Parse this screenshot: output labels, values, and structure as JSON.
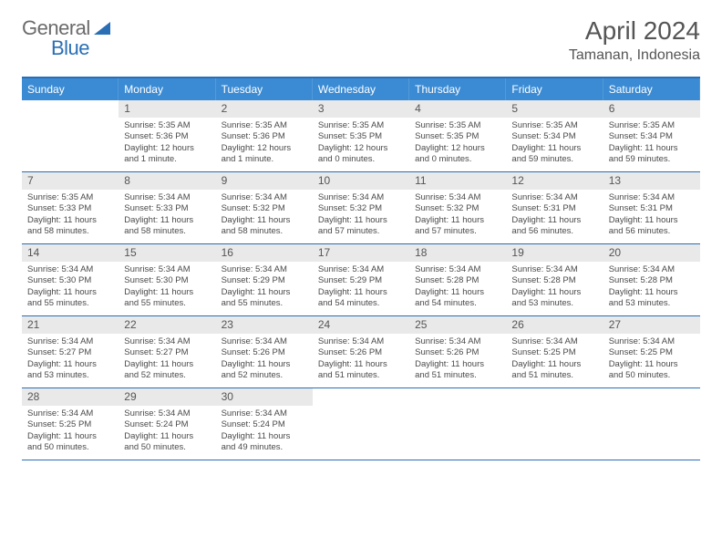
{
  "logo": {
    "word1": "General",
    "word2": "Blue"
  },
  "colors": {
    "brand_blue": "#2a6fb5",
    "header_blue": "#3b8bd4",
    "daynum_bg": "#e9e9e9",
    "text_gray": "#555555",
    "body_text": "#4a4a4a",
    "page_bg": "#ffffff"
  },
  "title": "April 2024",
  "location": "Tamanan, Indonesia",
  "weekdays": [
    "Sunday",
    "Monday",
    "Tuesday",
    "Wednesday",
    "Thursday",
    "Friday",
    "Saturday"
  ],
  "weeks": [
    [
      {
        "day": "",
        "sunrise": "",
        "sunset": "",
        "daylight": ""
      },
      {
        "day": "1",
        "sunrise": "Sunrise: 5:35 AM",
        "sunset": "Sunset: 5:36 PM",
        "daylight": "Daylight: 12 hours and 1 minute."
      },
      {
        "day": "2",
        "sunrise": "Sunrise: 5:35 AM",
        "sunset": "Sunset: 5:36 PM",
        "daylight": "Daylight: 12 hours and 1 minute."
      },
      {
        "day": "3",
        "sunrise": "Sunrise: 5:35 AM",
        "sunset": "Sunset: 5:35 PM",
        "daylight": "Daylight: 12 hours and 0 minutes."
      },
      {
        "day": "4",
        "sunrise": "Sunrise: 5:35 AM",
        "sunset": "Sunset: 5:35 PM",
        "daylight": "Daylight: 12 hours and 0 minutes."
      },
      {
        "day": "5",
        "sunrise": "Sunrise: 5:35 AM",
        "sunset": "Sunset: 5:34 PM",
        "daylight": "Daylight: 11 hours and 59 minutes."
      },
      {
        "day": "6",
        "sunrise": "Sunrise: 5:35 AM",
        "sunset": "Sunset: 5:34 PM",
        "daylight": "Daylight: 11 hours and 59 minutes."
      }
    ],
    [
      {
        "day": "7",
        "sunrise": "Sunrise: 5:35 AM",
        "sunset": "Sunset: 5:33 PM",
        "daylight": "Daylight: 11 hours and 58 minutes."
      },
      {
        "day": "8",
        "sunrise": "Sunrise: 5:34 AM",
        "sunset": "Sunset: 5:33 PM",
        "daylight": "Daylight: 11 hours and 58 minutes."
      },
      {
        "day": "9",
        "sunrise": "Sunrise: 5:34 AM",
        "sunset": "Sunset: 5:32 PM",
        "daylight": "Daylight: 11 hours and 58 minutes."
      },
      {
        "day": "10",
        "sunrise": "Sunrise: 5:34 AM",
        "sunset": "Sunset: 5:32 PM",
        "daylight": "Daylight: 11 hours and 57 minutes."
      },
      {
        "day": "11",
        "sunrise": "Sunrise: 5:34 AM",
        "sunset": "Sunset: 5:32 PM",
        "daylight": "Daylight: 11 hours and 57 minutes."
      },
      {
        "day": "12",
        "sunrise": "Sunrise: 5:34 AM",
        "sunset": "Sunset: 5:31 PM",
        "daylight": "Daylight: 11 hours and 56 minutes."
      },
      {
        "day": "13",
        "sunrise": "Sunrise: 5:34 AM",
        "sunset": "Sunset: 5:31 PM",
        "daylight": "Daylight: 11 hours and 56 minutes."
      }
    ],
    [
      {
        "day": "14",
        "sunrise": "Sunrise: 5:34 AM",
        "sunset": "Sunset: 5:30 PM",
        "daylight": "Daylight: 11 hours and 55 minutes."
      },
      {
        "day": "15",
        "sunrise": "Sunrise: 5:34 AM",
        "sunset": "Sunset: 5:30 PM",
        "daylight": "Daylight: 11 hours and 55 minutes."
      },
      {
        "day": "16",
        "sunrise": "Sunrise: 5:34 AM",
        "sunset": "Sunset: 5:29 PM",
        "daylight": "Daylight: 11 hours and 55 minutes."
      },
      {
        "day": "17",
        "sunrise": "Sunrise: 5:34 AM",
        "sunset": "Sunset: 5:29 PM",
        "daylight": "Daylight: 11 hours and 54 minutes."
      },
      {
        "day": "18",
        "sunrise": "Sunrise: 5:34 AM",
        "sunset": "Sunset: 5:28 PM",
        "daylight": "Daylight: 11 hours and 54 minutes."
      },
      {
        "day": "19",
        "sunrise": "Sunrise: 5:34 AM",
        "sunset": "Sunset: 5:28 PM",
        "daylight": "Daylight: 11 hours and 53 minutes."
      },
      {
        "day": "20",
        "sunrise": "Sunrise: 5:34 AM",
        "sunset": "Sunset: 5:28 PM",
        "daylight": "Daylight: 11 hours and 53 minutes."
      }
    ],
    [
      {
        "day": "21",
        "sunrise": "Sunrise: 5:34 AM",
        "sunset": "Sunset: 5:27 PM",
        "daylight": "Daylight: 11 hours and 53 minutes."
      },
      {
        "day": "22",
        "sunrise": "Sunrise: 5:34 AM",
        "sunset": "Sunset: 5:27 PM",
        "daylight": "Daylight: 11 hours and 52 minutes."
      },
      {
        "day": "23",
        "sunrise": "Sunrise: 5:34 AM",
        "sunset": "Sunset: 5:26 PM",
        "daylight": "Daylight: 11 hours and 52 minutes."
      },
      {
        "day": "24",
        "sunrise": "Sunrise: 5:34 AM",
        "sunset": "Sunset: 5:26 PM",
        "daylight": "Daylight: 11 hours and 51 minutes."
      },
      {
        "day": "25",
        "sunrise": "Sunrise: 5:34 AM",
        "sunset": "Sunset: 5:26 PM",
        "daylight": "Daylight: 11 hours and 51 minutes."
      },
      {
        "day": "26",
        "sunrise": "Sunrise: 5:34 AM",
        "sunset": "Sunset: 5:25 PM",
        "daylight": "Daylight: 11 hours and 51 minutes."
      },
      {
        "day": "27",
        "sunrise": "Sunrise: 5:34 AM",
        "sunset": "Sunset: 5:25 PM",
        "daylight": "Daylight: 11 hours and 50 minutes."
      }
    ],
    [
      {
        "day": "28",
        "sunrise": "Sunrise: 5:34 AM",
        "sunset": "Sunset: 5:25 PM",
        "daylight": "Daylight: 11 hours and 50 minutes."
      },
      {
        "day": "29",
        "sunrise": "Sunrise: 5:34 AM",
        "sunset": "Sunset: 5:24 PM",
        "daylight": "Daylight: 11 hours and 50 minutes."
      },
      {
        "day": "30",
        "sunrise": "Sunrise: 5:34 AM",
        "sunset": "Sunset: 5:24 PM",
        "daylight": "Daylight: 11 hours and 49 minutes."
      },
      {
        "day": "",
        "sunrise": "",
        "sunset": "",
        "daylight": ""
      },
      {
        "day": "",
        "sunrise": "",
        "sunset": "",
        "daylight": ""
      },
      {
        "day": "",
        "sunrise": "",
        "sunset": "",
        "daylight": ""
      },
      {
        "day": "",
        "sunrise": "",
        "sunset": "",
        "daylight": ""
      }
    ]
  ]
}
